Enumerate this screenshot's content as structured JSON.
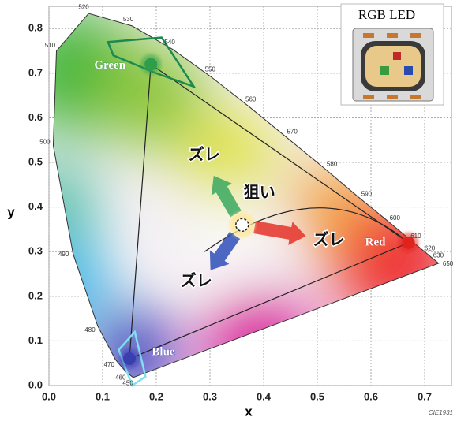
{
  "chart_data": {
    "type": "scatter",
    "xlabel": "x",
    "ylabel": "y",
    "xlim": [
      0,
      0.75
    ],
    "ylim": [
      0,
      0.85
    ],
    "xticks": [
      {
        "value": 0,
        "label": "0.0"
      },
      0.1,
      0.2,
      0.3,
      0.4,
      0.5,
      0.6,
      0.7
    ],
    "yticks": [
      {
        "value": 0,
        "label": "0.0"
      },
      0.1,
      0.2,
      0.3,
      0.4,
      0.5,
      0.6,
      0.7,
      0.8
    ],
    "grid": true,
    "series": [
      {
        "name": "Green",
        "color": "#2e9e4a",
        "x": [
          0.19
        ],
        "y": [
          0.72
        ]
      },
      {
        "name": "Red",
        "color": "#e0241c",
        "x": [
          0.67
        ],
        "y": [
          0.32
        ]
      },
      {
        "name": "Blue",
        "color": "#3a3fb0",
        "x": [
          0.15
        ],
        "y": [
          0.06
        ]
      }
    ],
    "target": {
      "label": "狙い",
      "x": [
        0.36
      ],
      "y": [
        0.36
      ]
    },
    "shift_labels": [
      "ズレ",
      "ズレ",
      "ズレ"
    ],
    "locus": {
      "labels": [
        450,
        460,
        470,
        480,
        490,
        500,
        510,
        520,
        530,
        540,
        550,
        560,
        570,
        580,
        590,
        600,
        610,
        620,
        630,
        650
      ],
      "x": [
        0.157,
        0.144,
        0.124,
        0.091,
        0.045,
        0.008,
        0.014,
        0.074,
        0.155,
        0.23,
        0.302,
        0.373,
        0.444,
        0.513,
        0.575,
        0.627,
        0.666,
        0.692,
        0.708,
        0.726
      ],
      "y": [
        0.018,
        0.03,
        0.058,
        0.133,
        0.295,
        0.538,
        0.75,
        0.834,
        0.806,
        0.754,
        0.692,
        0.625,
        0.555,
        0.487,
        0.424,
        0.373,
        0.334,
        0.308,
        0.292,
        0.274
      ]
    },
    "inset_title": "RGB LED",
    "source": "CIE1931"
  }
}
